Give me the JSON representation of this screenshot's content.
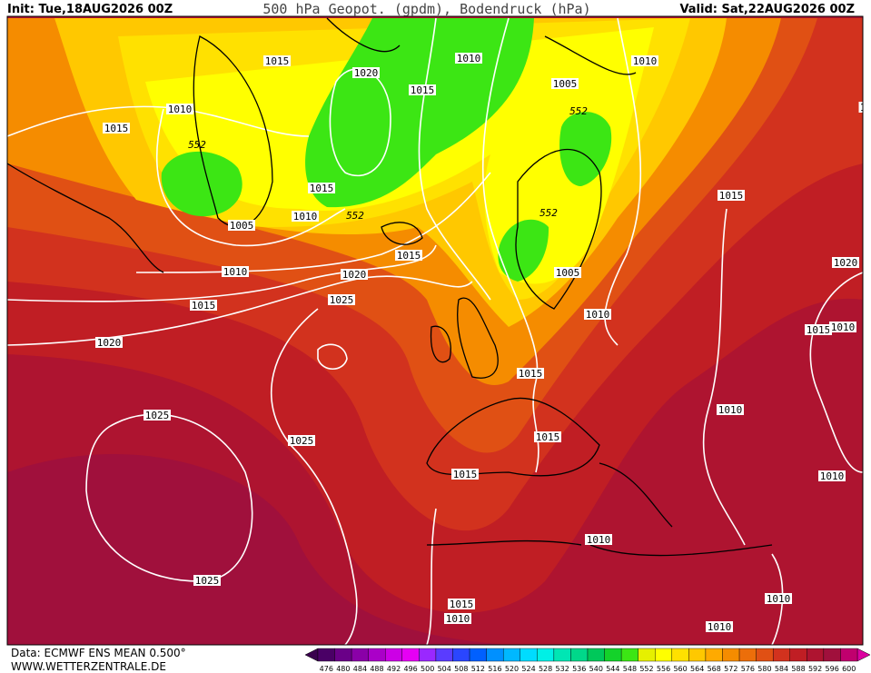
{
  "header": {
    "init": "Init: Tue,18AUG2026 00Z",
    "title": "500 hPa Geopot. (gpdm), Bodendruck (hPa)",
    "valid": "Valid: Sat,22AUG2026 00Z"
  },
  "map": {
    "pressure_labels": [
      "1015",
      "1010",
      "1015",
      "1020",
      "1015",
      "1010",
      "1010",
      "1005",
      "1015",
      "1010",
      "1005",
      "1015",
      "1015",
      "1010",
      "1020",
      "1005",
      "1010",
      "1015",
      "1025",
      "1020",
      "1020",
      "1015",
      "1010",
      "1015",
      "1010",
      "1025",
      "1025",
      "1015",
      "1015",
      "1010",
      "1010",
      "1025",
      "1015",
      "1010",
      "1010",
      "1010",
      "1"
    ],
    "height_labels": [
      "552",
      "552",
      "552",
      "552"
    ]
  },
  "colorbar": {
    "values": [
      476,
      480,
      484,
      488,
      492,
      496,
      500,
      504,
      508,
      512,
      516,
      520,
      524,
      528,
      532,
      536,
      540,
      544,
      548,
      552,
      556,
      560,
      564,
      568,
      572,
      576,
      580,
      584,
      588,
      592,
      596,
      600
    ],
    "colors": [
      "#4a0066",
      "#6a0088",
      "#8a00a8",
      "#aa00c8",
      "#cc00e6",
      "#e600f5",
      "#9a28ff",
      "#5a3cff",
      "#2a46ff",
      "#0060ff",
      "#0090ff",
      "#00b8ff",
      "#00dcff",
      "#00f0e6",
      "#00e6b4",
      "#00d88a",
      "#00c85a",
      "#14d22a",
      "#3ce614",
      "#e6f000",
      "#ffff00",
      "#ffe100",
      "#ffc800",
      "#ffaa00",
      "#f58c00",
      "#ec6e0a",
      "#e05014",
      "#d2321e",
      "#c01e24",
      "#ae1430",
      "#a0103c",
      "#c0006e"
    ],
    "under_color": "#3a004e",
    "over_color": "#dc00a0"
  },
  "footer": {
    "source": "Data: ECMWF ENS MEAN 0.500°",
    "website": "WWW.WETTERZENTRALE.DE"
  }
}
